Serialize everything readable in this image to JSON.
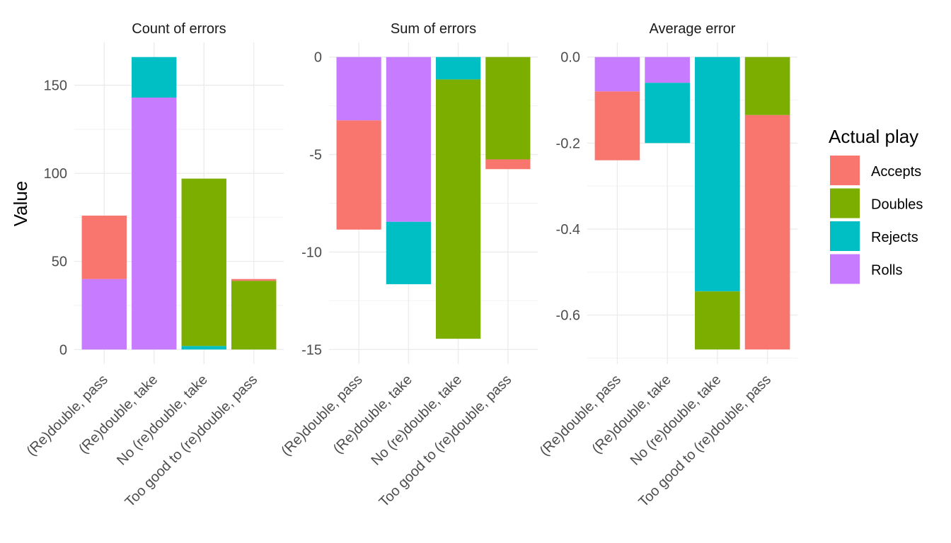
{
  "chart_data": {
    "type": "bar",
    "stacked": true,
    "ylabel": "Value",
    "legend": {
      "title": "Actual play",
      "position": "right",
      "entries": [
        {
          "name": "Accepts",
          "color": "#F8766D"
        },
        {
          "name": "Doubles",
          "color": "#7CAE00"
        },
        {
          "name": "Rejects",
          "color": "#00BFC4"
        },
        {
          "name": "Rolls",
          "color": "#C77CFF"
        }
      ]
    },
    "categories": [
      "(Re)double, pass",
      "(Re)double, take",
      "No (re)double, take",
      "Too good to (re)double, pass"
    ],
    "grid": true,
    "panels": [
      {
        "title": "Count of errors",
        "ylim": [
          0,
          166
        ],
        "yticks": [
          0,
          50,
          100,
          150
        ],
        "ytick_labels": [
          "0",
          "50",
          "100",
          "150"
        ],
        "series": [
          {
            "name": "Rolls",
            "values": [
              40,
              143,
              0,
              0
            ]
          },
          {
            "name": "Rejects",
            "values": [
              0,
              23,
              2,
              0
            ]
          },
          {
            "name": "Doubles",
            "values": [
              0,
              0,
              95,
              39
            ]
          },
          {
            "name": "Accepts",
            "values": [
              36,
              0,
              0,
              1
            ]
          }
        ]
      },
      {
        "title": "Sum of errors",
        "ylim": [
          -15,
          0
        ],
        "yticks": [
          0,
          -5,
          -10,
          -15
        ],
        "ytick_labels": [
          "0",
          "-5",
          "-10",
          "-15"
        ],
        "series": [
          {
            "name": "Rolls",
            "values": [
              -3.25,
              -8.45,
              0,
              0
            ]
          },
          {
            "name": "Rejects",
            "values": [
              0,
              -3.2,
              -1.15,
              0
            ]
          },
          {
            "name": "Doubles",
            "values": [
              0,
              0,
              -13.3,
              -5.25
            ]
          },
          {
            "name": "Accepts",
            "values": [
              -5.6,
              0,
              0,
              -0.5
            ]
          }
        ]
      },
      {
        "title": "Average error",
        "ylim": [
          -0.68,
          0
        ],
        "yticks": [
          0,
          -0.2,
          -0.4,
          -0.6
        ],
        "ytick_labels": [
          "0.0",
          "-0.2",
          "-0.4",
          "-0.6"
        ],
        "series": [
          {
            "name": "Rolls",
            "values": [
              -0.08,
              -0.06,
              0,
              0
            ]
          },
          {
            "name": "Rejects",
            "values": [
              0,
              -0.14,
              -0.545,
              0
            ]
          },
          {
            "name": "Doubles",
            "values": [
              0,
              0,
              -0.135,
              -0.135
            ]
          },
          {
            "name": "Accepts",
            "values": [
              -0.16,
              0,
              0,
              -0.545
            ]
          }
        ]
      }
    ]
  }
}
